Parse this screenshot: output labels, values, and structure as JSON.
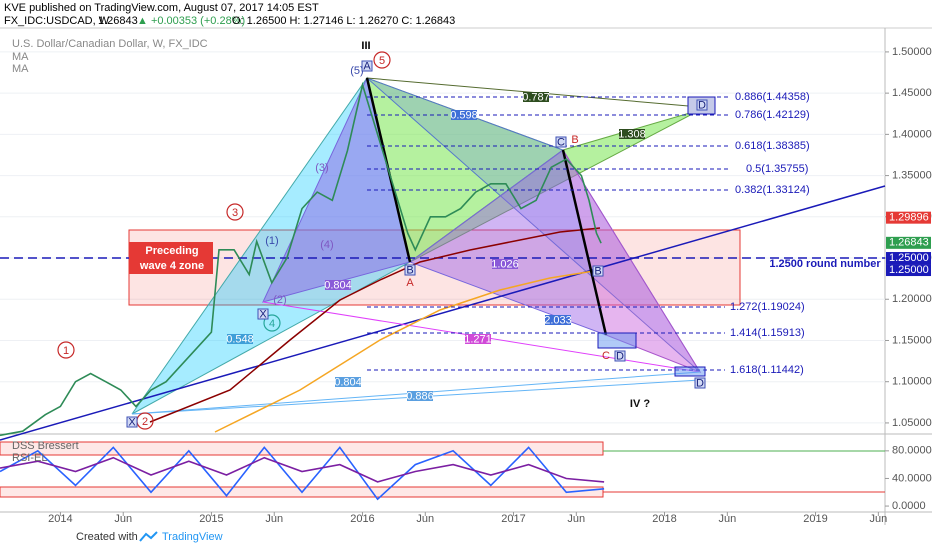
{
  "header": {
    "publisher": "KVE published on TradingView.com, August 07, 2017 14:05 EST",
    "symbol": "FX_IDC:USDCAD, W",
    "last": "1.26843",
    "change": "▲ +0.00353 (+0.28%)",
    "ohlc": "O: 1.26500 H: 1.27146 L: 1.26270 C: 1.26843"
  },
  "footer": {
    "created": "Created with",
    "brand": "TradingView"
  },
  "chart_data": [
    {
      "type": "line",
      "title": "U.S. Dollar/Canadian Dollar, W, FX_IDC",
      "indicators": [
        "MA",
        "MA"
      ],
      "x": [
        2013.6,
        2013.75,
        2013.9,
        2014.0,
        2014.1,
        2014.2,
        2014.3,
        2014.4,
        2014.5,
        2014.6,
        2014.7,
        2014.8,
        2014.9,
        2015.0,
        2015.05,
        2015.15,
        2015.25,
        2015.3,
        2015.4,
        2015.5,
        2015.6,
        2015.7,
        2015.8,
        2015.9,
        2016.0,
        2016.1,
        2016.2,
        2016.3,
        2016.35,
        2016.45,
        2016.55,
        2016.65,
        2016.75,
        2016.85,
        2016.95,
        2017.05,
        2017.15,
        2017.25,
        2017.35,
        2017.45,
        2017.5,
        2017.55,
        2017.58
      ],
      "values": [
        1.035,
        1.04,
        1.06,
        1.07,
        1.1,
        1.11,
        1.1,
        1.09,
        1.07,
        1.09,
        1.1,
        1.12,
        1.14,
        1.16,
        1.26,
        1.26,
        1.23,
        1.27,
        1.22,
        1.25,
        1.31,
        1.33,
        1.32,
        1.38,
        1.46,
        1.4,
        1.34,
        1.28,
        1.26,
        1.3,
        1.3,
        1.31,
        1.33,
        1.34,
        1.34,
        1.31,
        1.32,
        1.36,
        1.37,
        1.35,
        1.32,
        1.28,
        1.268
      ],
      "color": "#2e8b57",
      "xlim": [
        2013.6,
        2019.46
      ],
      "xticks": [
        2014,
        {
          "value": 2014.416,
          "label": "Jun"
        },
        2015,
        {
          "value": 2015.416,
          "label": "Jun"
        },
        2016,
        {
          "value": 2016.416,
          "label": "Jun"
        },
        2017,
        {
          "value": 2017.416,
          "label": "Jun"
        },
        2018,
        {
          "value": 2018.416,
          "label": "Jun"
        },
        2019,
        {
          "value": 2019.416,
          "label": "Jun"
        }
      ],
      "ylim": [
        1.039,
        1.529
      ],
      "yticks": [
        {
          "value": 1.05,
          "label": "1.05000"
        },
        {
          "value": 1.1,
          "label": "1.10000"
        },
        {
          "value": 1.15,
          "label": "1.15000"
        },
        {
          "value": 1.2,
          "label": "1.20000"
        },
        {
          "value": 1.25,
          "label": "1.25000"
        },
        {
          "value": 1.3,
          "label": "1.30000"
        },
        {
          "value": 1.35,
          "label": "1.35000"
        },
        {
          "value": 1.4,
          "label": "1.40000"
        },
        {
          "value": 1.45,
          "label": "1.45000"
        },
        {
          "value": 1.5,
          "label": "1.50000"
        }
      ],
      "price_labels": [
        {
          "value": 1.29896,
          "label": "1.29896",
          "color": "#e53935"
        },
        {
          "value": 1.26843,
          "label": "1.26843",
          "color": "#2e9e4f"
        },
        {
          "value": 1.25,
          "label": "1.25000",
          "color": "#1a1ab8"
        },
        {
          "value": 1.25,
          "label": "1.25000",
          "color": "#1a1ab8"
        }
      ],
      "annotations": [
        "III",
        "5",
        "(5)",
        "A",
        "(3)",
        "3",
        "(1)",
        "(4)",
        "(2)",
        "4",
        "1",
        "2",
        "X",
        "X",
        "B",
        "A",
        "B",
        "C",
        "B",
        "C",
        "D",
        "D",
        "D",
        "IV ?",
        "Preceding",
        "wave 4 zone",
        "1.2500 round number",
        "0.886(1.44358)",
        "0.786(1.42129)",
        "0.618(1.38385)",
        "0.5(1.35755)",
        "0.382(1.33124)",
        "1.272(1.19024)",
        "1.414(1.15913)",
        "1.618(1.11442)",
        "0.787",
        "0.598",
        "1.308",
        "0.804",
        "1.026",
        "2.033",
        "1.271",
        "0.548",
        "0.804",
        "0.886"
      ]
    },
    {
      "type": "line",
      "x": [
        2013.6,
        2013.85,
        2014.1,
        2014.35,
        2014.6,
        2014.85,
        2015.1,
        2015.35,
        2015.6,
        2015.85,
        2016.1,
        2016.35,
        2016.6,
        2016.85,
        2017.1,
        2017.35,
        2017.6
      ],
      "series": [
        {
          "name": "DSS Bressert",
          "color": "#2962ff",
          "values": [
            50,
            80,
            30,
            85,
            20,
            80,
            15,
            85,
            20,
            85,
            10,
            60,
            80,
            30,
            85,
            20,
            25
          ]
        },
        {
          "name": "RSI-EL",
          "color": "#7b1fa2",
          "values": [
            55,
            65,
            50,
            70,
            45,
            65,
            45,
            70,
            50,
            60,
            35,
            50,
            60,
            45,
            60,
            40,
            35
          ]
        }
      ],
      "ylim": [
        -8.6,
        95.7
      ],
      "yticks": [
        {
          "value": 80,
          "label": "80.0000"
        },
        {
          "value": 40,
          "label": "40.0000"
        },
        {
          "value": 0,
          "label": "0.0000"
        }
      ]
    }
  ]
}
